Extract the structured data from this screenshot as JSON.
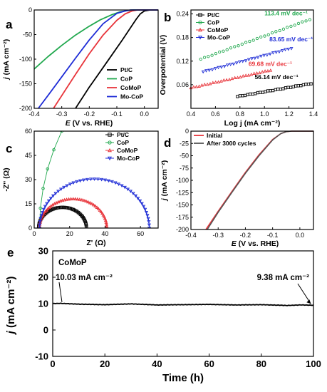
{
  "chart_data": [
    {
      "id": "a",
      "type": "line",
      "panel_label": "a",
      "xlabel_var": "E",
      "xlabel_unit": "(V vs. RHE)",
      "ylabel_var": "j",
      "ylabel_unit": "(mA cm⁻²)",
      "xlim": [
        -0.4,
        0.05
      ],
      "ylim": [
        -200,
        0
      ],
      "xticks": [
        -0.4,
        -0.3,
        -0.2,
        -0.1,
        0.0
      ],
      "xtick_labels": [
        "-0.4",
        "-0.3",
        "-0.2",
        "-0.1",
        "0.0"
      ],
      "yticks": [
        -200,
        -150,
        -100,
        -50,
        0
      ],
      "legend_position": "bottom-right",
      "series": [
        {
          "name": "Pt/C",
          "color": "#000000",
          "x": [
            -0.25,
            -0.2,
            -0.16,
            -0.12,
            -0.08,
            -0.05,
            -0.03,
            -0.015,
            0.0,
            0.02,
            0.05
          ],
          "y": [
            -200,
            -157,
            -125,
            -93,
            -61,
            -36,
            -19,
            -8,
            -2,
            0,
            0
          ]
        },
        {
          "name": "CoP",
          "color": "#21a84e",
          "x": [
            -0.4,
            -0.35,
            -0.3,
            -0.25,
            -0.2,
            -0.16,
            -0.12,
            -0.09,
            -0.06,
            -0.04,
            0.05
          ],
          "y": [
            -120,
            -95,
            -72,
            -51,
            -33,
            -20,
            -10,
            -4,
            -1,
            0,
            0
          ]
        },
        {
          "name": "CoMoP",
          "color": "#e8343a",
          "x": [
            -0.33,
            -0.3,
            -0.25,
            -0.2,
            -0.15,
            -0.1,
            -0.07,
            -0.045,
            -0.025,
            0.05
          ],
          "y": [
            -200,
            -174,
            -131,
            -89,
            -51,
            -21,
            -8,
            -2,
            0,
            0
          ]
        },
        {
          "name": "Mo-CoP",
          "color": "#1d2bd6",
          "x": [
            -0.385,
            -0.35,
            -0.3,
            -0.25,
            -0.2,
            -0.15,
            -0.1,
            -0.07,
            -0.05,
            0.05
          ],
          "y": [
            -200,
            -174,
            -136,
            -98,
            -61,
            -28,
            -7,
            -2,
            0,
            0
          ]
        }
      ]
    },
    {
      "id": "b",
      "type": "scatter",
      "panel_label": "b",
      "xlabel": "Log j (mA cm⁻²)",
      "ylabel": "Overpotential (V)",
      "xlim": [
        0.4,
        1.4
      ],
      "ylim": [
        0.0,
        0.25
      ],
      "xticks": [
        0.4,
        0.6,
        0.8,
        1.0,
        1.2,
        1.4
      ],
      "xtick_labels": [
        "0.4",
        "0.6",
        "0.8",
        "1.0",
        "1.2",
        "1.4"
      ],
      "yticks": [
        0.06,
        0.12,
        0.18,
        0.24
      ],
      "ytick_labels": [
        "0.06",
        "0.12",
        "0.18",
        "0.24"
      ],
      "legend_position": "top-left",
      "series": [
        {
          "name": "Pt/C",
          "color": "#000000",
          "marker": "square",
          "x0": 0.78,
          "y0": 0.03,
          "x1": 1.38,
          "y1": 0.063,
          "slope_label": "56.14 mV dec⁻¹"
        },
        {
          "name": "CoP",
          "color": "#21a84e",
          "marker": "circle",
          "x0": 0.48,
          "y0": 0.125,
          "x1": 1.37,
          "y1": 0.226,
          "slope_label": "113.4 mV dec⁻¹"
        },
        {
          "name": "CoMoP",
          "color": "#e8343a",
          "marker": "triangle",
          "x0": 0.4,
          "y0": 0.052,
          "x1": 1.05,
          "y1": 0.097,
          "slope_label": "69.68 mV dec⁻¹"
        },
        {
          "name": "Mo-CoP",
          "color": "#1d2bd6",
          "marker": "triangle-down",
          "x0": 0.5,
          "y0": 0.093,
          "x1": 1.22,
          "y1": 0.153,
          "slope_label": "83.65 mV dec⁻¹"
        }
      ]
    },
    {
      "id": "c",
      "type": "scatter",
      "panel_label": "c",
      "xlabel": "Z' (Ω)",
      "ylabel": "-Z'' (Ω)",
      "xlim": [
        0,
        70
      ],
      "ylim": [
        0,
        60
      ],
      "xticks": [
        0,
        20,
        40,
        60
      ],
      "yticks": [
        0,
        15,
        30,
        45,
        60
      ],
      "legend_position": "top-right",
      "series": [
        {
          "name": "Pt/C",
          "color": "#000000",
          "marker": "square",
          "shape": "semicircle",
          "rs": 2.5,
          "rct": 27,
          "depress": 0.95
        },
        {
          "name": "CoP",
          "color": "#21a84e",
          "marker": "circle",
          "shape": "arc",
          "rs": 3,
          "rct": 330,
          "depress": 0.95,
          "x_max": 18
        },
        {
          "name": "CoMoP",
          "color": "#e8343a",
          "marker": "triangle",
          "shape": "semicircle",
          "rs": 3,
          "rct": 38,
          "depress": 0.95
        },
        {
          "name": "Mo-CoP",
          "color": "#1d2bd6",
          "marker": "triangle-down",
          "shape": "semicircle",
          "rs": 3,
          "rct": 62,
          "depress": 0.98
        }
      ]
    },
    {
      "id": "d",
      "type": "line",
      "panel_label": "d",
      "xlabel_var": "E",
      "xlabel_unit": "(V vs. RHE)",
      "ylabel_var": "j",
      "ylabel_unit": "(mA cm⁻²)",
      "xlim": [
        -0.4,
        0.05
      ],
      "ylim": [
        -200,
        0
      ],
      "xticks": [
        -0.4,
        -0.3,
        -0.2,
        -0.1,
        0.0
      ],
      "xtick_labels": [
        "-0.4",
        "-0.3",
        "-0.2",
        "-0.1",
        "0.0"
      ],
      "yticks": [
        -200,
        -175,
        -150,
        -125,
        -100,
        -75,
        -50,
        -25,
        0
      ],
      "legend_position": "top-left",
      "series": [
        {
          "name": "Initial",
          "color": "#e8343a",
          "x": [
            -0.345,
            -0.3,
            -0.25,
            -0.2,
            -0.15,
            -0.1,
            -0.07,
            -0.05,
            -0.03,
            0.05
          ],
          "y": [
            -200,
            -163,
            -123,
            -84,
            -48,
            -17,
            -5,
            -1,
            0,
            0
          ]
        },
        {
          "name": "After 3000 cycles",
          "color": "#555555",
          "x": [
            -0.34,
            -0.3,
            -0.25,
            -0.2,
            -0.15,
            -0.1,
            -0.07,
            -0.05,
            -0.03,
            0.05
          ],
          "y": [
            -200,
            -165,
            -125,
            -86,
            -50,
            -18,
            -5,
            -1,
            0,
            0
          ]
        }
      ]
    },
    {
      "id": "e",
      "type": "line",
      "panel_label": "e",
      "xlabel": "Time (h)",
      "ylabel_var": "j",
      "ylabel_unit": "(mA cm⁻²)",
      "xlim": [
        0,
        100
      ],
      "ylim": [
        -10,
        30
      ],
      "xticks": [
        0,
        20,
        40,
        60,
        80,
        100
      ],
      "yticks": [
        -10,
        0,
        10,
        20,
        30
      ],
      "series_title": "CoMoP",
      "annotations": [
        {
          "text": "10.03 mA cm⁻²",
          "x": 3,
          "y": 10.03
        },
        {
          "text": "9.38 mA cm⁻²",
          "x": 99,
          "y": 9.38
        }
      ],
      "series": [
        {
          "name": "CoMoP",
          "color": "#000000",
          "x": [
            0,
            3,
            10,
            20,
            30,
            40,
            50,
            60,
            70,
            80,
            90,
            95,
            100
          ],
          "y": [
            10.03,
            10.1,
            9.8,
            9.6,
            9.9,
            9.5,
            9.6,
            9.7,
            9.5,
            9.6,
            9.3,
            9.5,
            9.38
          ]
        }
      ]
    }
  ]
}
